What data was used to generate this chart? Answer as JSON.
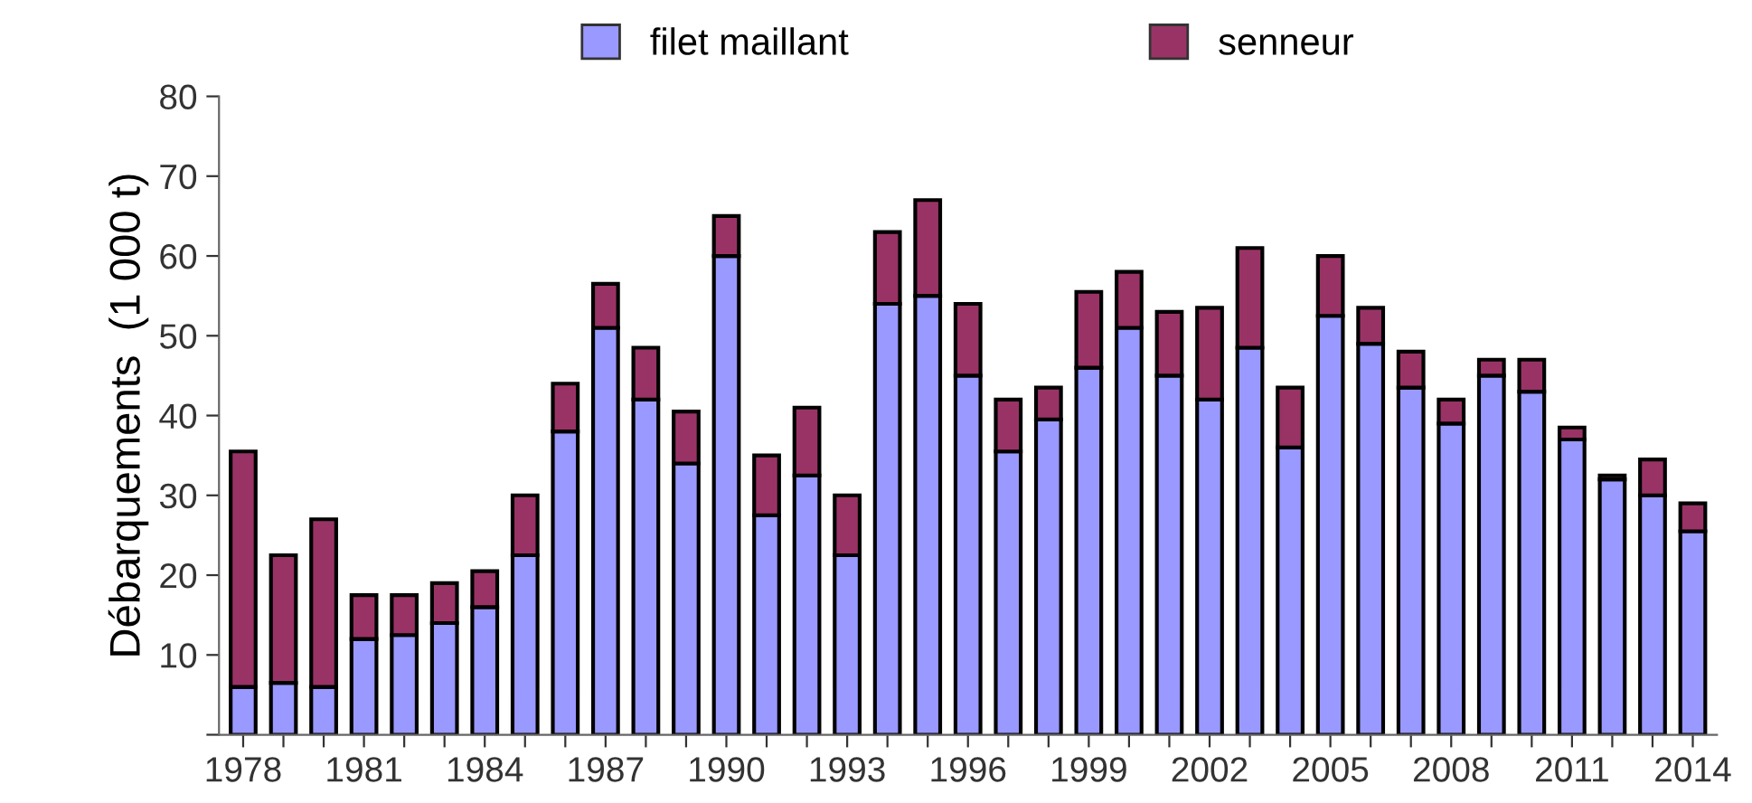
{
  "chart_data": {
    "type": "bar",
    "stacked": true,
    "ylabel": "Débarquements  (1 000 t)",
    "categories": [
      "1978",
      null,
      null,
      "1981",
      null,
      null,
      "1984",
      null,
      null,
      "1987",
      null,
      null,
      "1990",
      null,
      null,
      "1993",
      null,
      null,
      "1996",
      null,
      null,
      "1999",
      null,
      null,
      "2002",
      null,
      null,
      "2005",
      null,
      null,
      "2008",
      null,
      null,
      "2011",
      null,
      null,
      "2014"
    ],
    "series": [
      {
        "name": "filet maillant",
        "color": "#9999ff",
        "values": [
          6,
          6.5,
          6,
          12,
          12.5,
          14,
          16,
          22.5,
          38,
          51,
          42,
          34,
          60,
          27.5,
          32.5,
          22.5,
          54,
          55,
          45,
          35.5,
          39.5,
          46,
          51,
          45,
          42,
          48.5,
          36,
          52.5,
          49,
          43.5,
          39,
          45,
          43,
          37,
          32,
          30,
          25.5
        ]
      },
      {
        "name": "senneur",
        "color": "#993366",
        "values": [
          29.5,
          16,
          21,
          5.5,
          5,
          5,
          4.5,
          7.5,
          6,
          5.5,
          6.5,
          6.5,
          5,
          7.5,
          8.5,
          7.5,
          9,
          12,
          9,
          6.5,
          4,
          9.5,
          7,
          8,
          11.5,
          12.5,
          7.5,
          7.5,
          4.5,
          4.5,
          3,
          2,
          4,
          1.5,
          0.5,
          4.5,
          3.5
        ]
      }
    ],
    "ylim": [
      0,
      80
    ],
    "yticks": [
      {
        "value": 0,
        "label": null
      },
      10,
      20,
      30,
      40,
      50,
      60,
      70,
      80
    ],
    "legend": "top",
    "grid": false
  }
}
